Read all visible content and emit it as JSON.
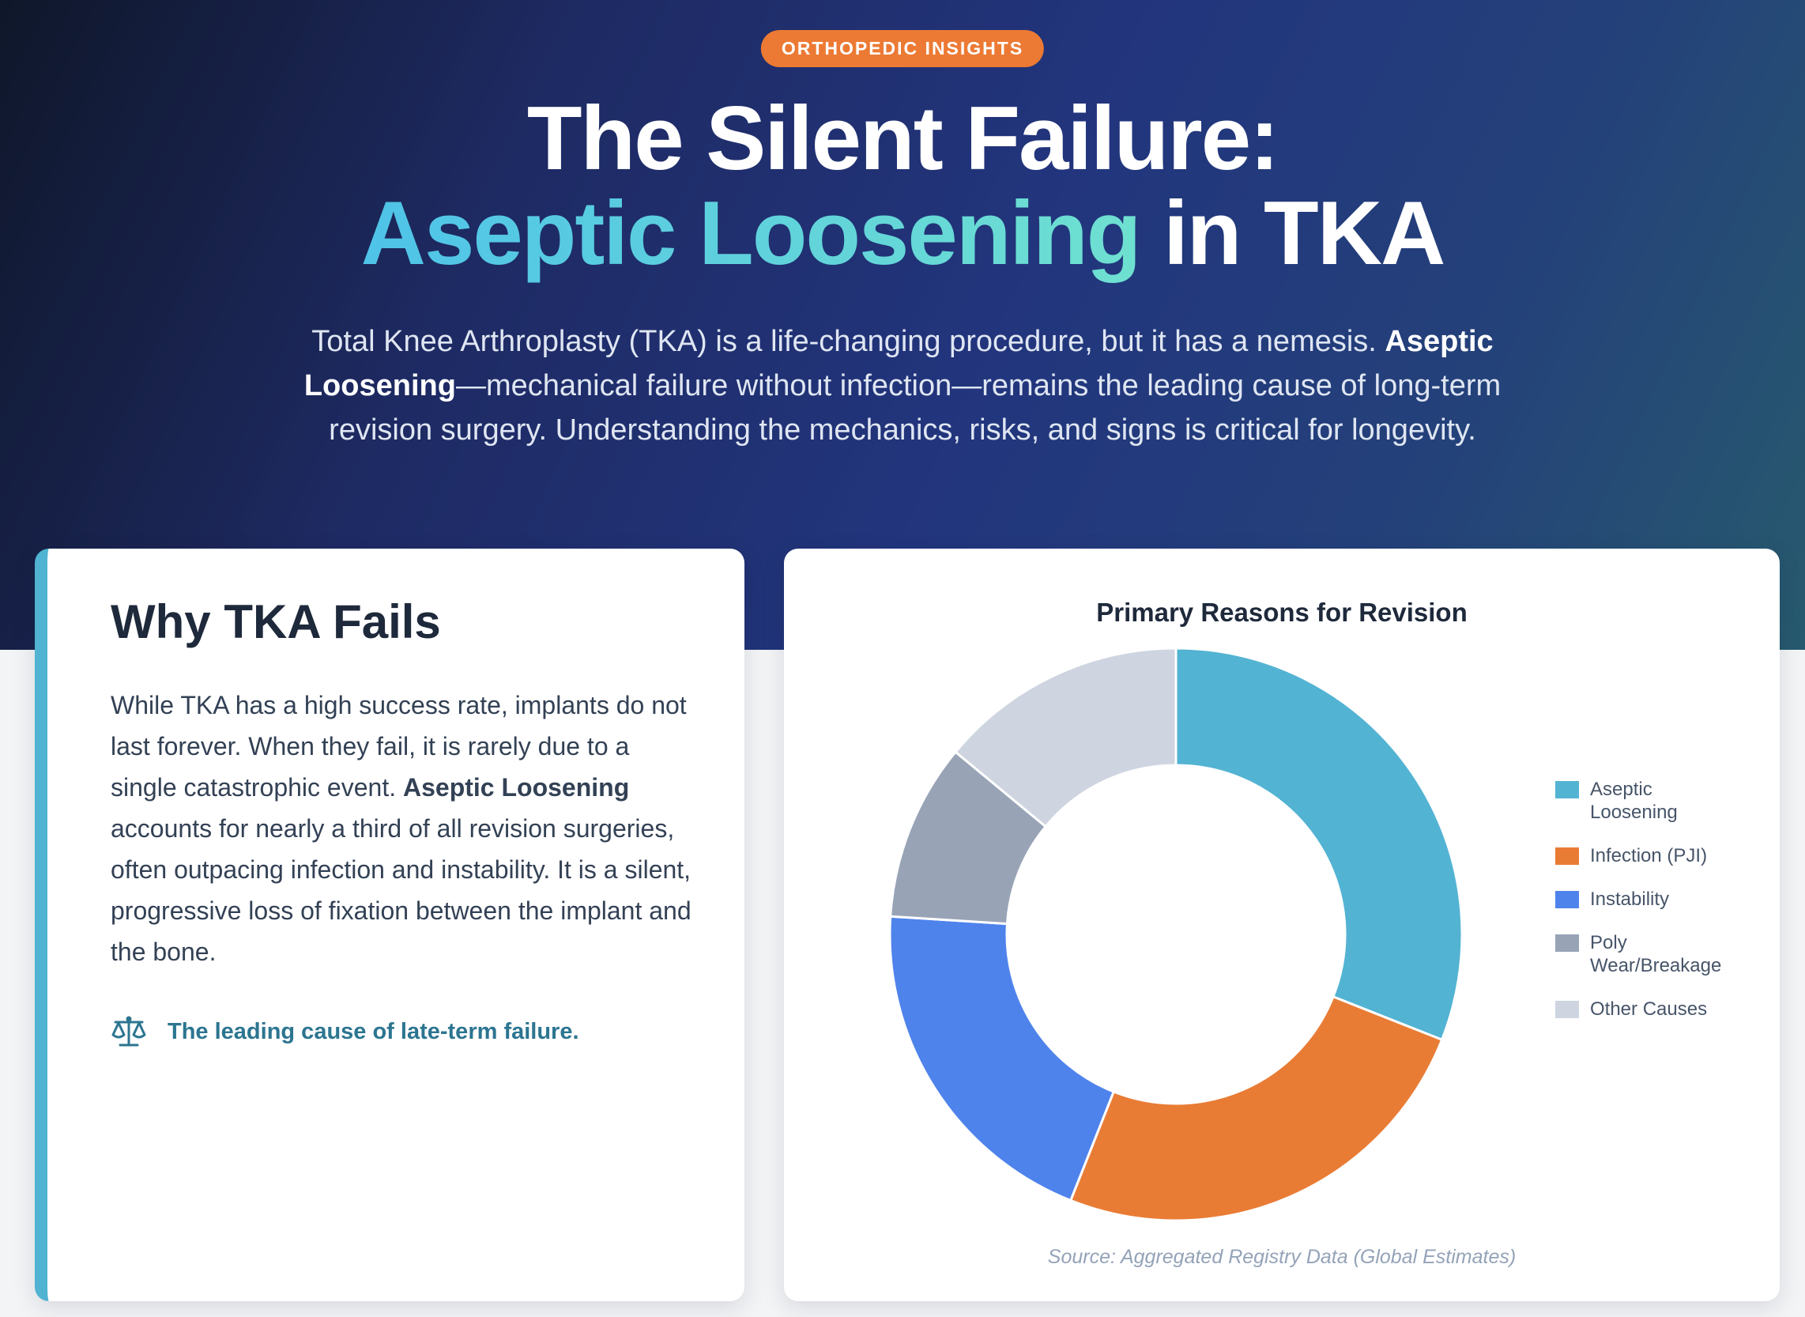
{
  "header": {
    "badge": "ORTHOPEDIC INSIGHTS",
    "title_line1": "The Silent Failure:",
    "title_accent": "Aseptic Loosening",
    "title_tail": " in TKA",
    "intro_part1": "Total Knee Arthroplasty (TKA) is a life-changing procedure, but it has a nemesis. ",
    "intro_bold": "Aseptic Loosening",
    "intro_part2": "—mechanical failure without infection—remains the leading cause of long-term revision surgery. Understanding the mechanics, risks, and signs is critical for longevity."
  },
  "why_card": {
    "heading": "Why TKA Fails",
    "body_part1": "While TKA has a high success rate, implants do not last forever. When they fail, it is rarely due to a single catastrophic event. ",
    "body_bold": "Aseptic Loosening",
    "body_part2": " accounts for nearly a third of all revision surgeries, often outpacing infection and instability. It is a silent, progressive loss of fixation between the implant and the bone.",
    "callout_icon": "balance-scale-icon",
    "callout_text": "The leading cause of late-term failure."
  },
  "chart_data": {
    "type": "pie",
    "donut": true,
    "title": "Primary Reasons for Revision",
    "categories": [
      "Aseptic Loosening",
      "Infection (PJI)",
      "Instability",
      "Poly Wear/Breakage",
      "Other Causes"
    ],
    "values": [
      31,
      25,
      20,
      10,
      14
    ],
    "colors": [
      "#53b3d3",
      "#e97c35",
      "#4f83ec",
      "#98a3b6",
      "#ced5e0"
    ],
    "legend_position": "right",
    "source": "Source: Aggregated Registry Data (Global Estimates)"
  }
}
